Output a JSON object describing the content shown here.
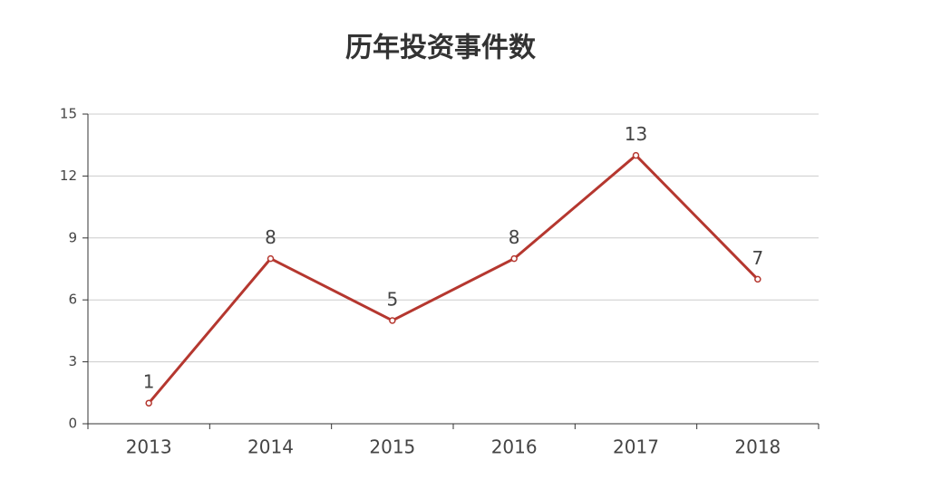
{
  "chart_data": {
    "type": "line",
    "title": "历年投资事件数",
    "categories": [
      "2013",
      "2014",
      "2015",
      "2016",
      "2017",
      "2018"
    ],
    "values": [
      1,
      8,
      5,
      8,
      13,
      7
    ],
    "color": "#b5372f",
    "ylim": [
      0,
      15
    ],
    "yticks": [
      0,
      3,
      6,
      9,
      12,
      15
    ],
    "grid": true
  }
}
